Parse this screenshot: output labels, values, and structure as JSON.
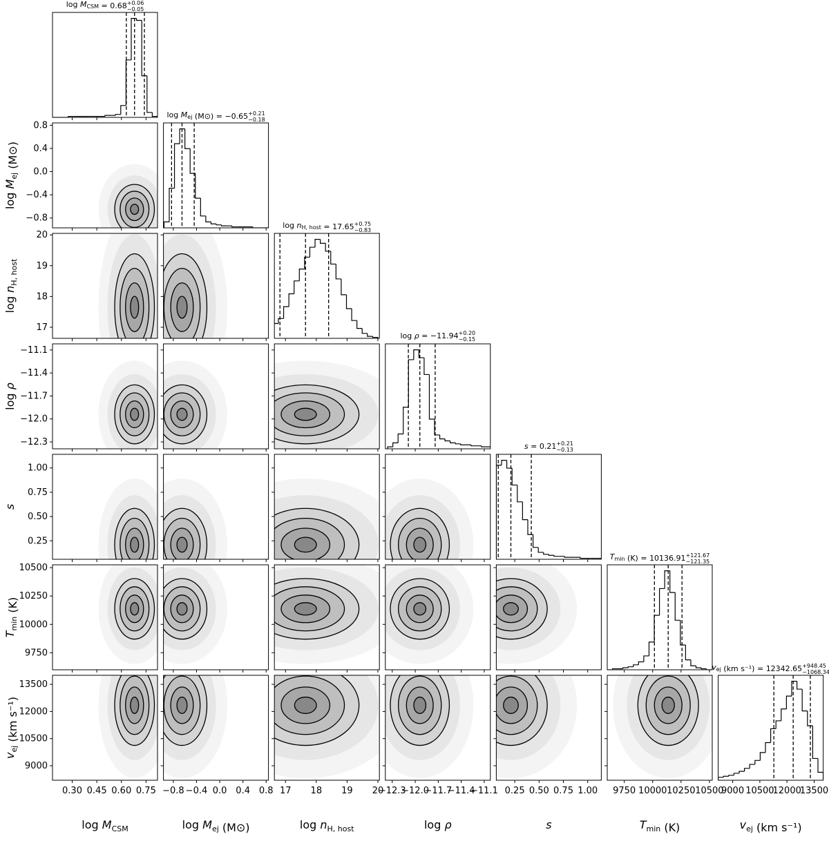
{
  "chart_data": {
    "type": "corner",
    "color": "#000000",
    "density_color": "#707070",
    "equals": " = ",
    "hist_ylim": [
      0,
      106
    ],
    "params": [
      {
        "label": {
          "pre": "log ",
          "var": "M",
          "sub": "CSM"
        },
        "median": 0.68,
        "plus": {
          "value": 0.06,
          "label": "+0.06"
        },
        "minus": {
          "value": -0.05,
          "label": "−0.05"
        },
        "lim": [
          0.18,
          0.82
        ],
        "ticks": [
          {
            "value": 0.3,
            "label": "0.30"
          },
          0.45,
          {
            "value": 0.6,
            "label": "0.60"
          },
          0.75
        ],
        "bins": [
          0.18,
          0.212,
          0.244,
          0.276,
          0.308,
          0.34,
          0.372,
          0.404,
          0.436,
          0.468,
          0.5,
          0.532,
          0.564,
          0.596,
          0.628,
          0.66,
          0.692,
          0.724,
          0.756,
          0.788,
          0.82
        ],
        "counts": [
          0,
          0,
          0,
          1,
          1,
          1,
          1,
          1,
          1,
          1,
          2,
          2,
          3,
          12,
          58,
          100,
          98,
          42,
          5,
          1
        ]
      },
      {
        "label": {
          "pre": "log ",
          "var": "M",
          "sub": "ej",
          "post": " (M⊙)"
        },
        "median": {
          "value": -0.65,
          "label": "−0.65"
        },
        "plus": {
          "value": 0.21,
          "label": "+0.21"
        },
        "minus": {
          "value": -0.18,
          "label": "−0.18"
        },
        "lim": [
          -0.97,
          0.84
        ],
        "ticks": [
          {
            "value": -0.8,
            "label": "−0.8"
          },
          {
            "value": -0.4,
            "label": "−0.4"
          },
          {
            "value": 0,
            "label": "0.0"
          },
          0.4,
          0.8
        ],
        "bins": [
          -0.96,
          -0.87,
          -0.78,
          -0.69,
          -0.6,
          -0.51,
          -0.42,
          -0.33,
          -0.24,
          -0.15,
          -0.06,
          0.03,
          0.12,
          0.21,
          0.3,
          0.39,
          0.48,
          0.57,
          0.66,
          0.75,
          0.84
        ],
        "counts": [
          6,
          40,
          85,
          100,
          80,
          55,
          30,
          12,
          6,
          4,
          3,
          2,
          2,
          1,
          1,
          1,
          1,
          0,
          0,
          0
        ]
      },
      {
        "label": {
          "pre": "log ",
          "var": "n",
          "sub": "H, host"
        },
        "median": 17.65,
        "plus": {
          "value": 0.75,
          "label": "+0.75"
        },
        "minus": {
          "value": -0.83,
          "label": "−0.83"
        },
        "lim": [
          16.64,
          20.05
        ],
        "ticks": [
          17,
          18,
          19,
          20
        ],
        "bins": [
          16.6,
          16.77,
          16.94,
          17.11,
          17.28,
          17.45,
          17.62,
          17.79,
          17.96,
          18.13,
          18.3,
          18.47,
          18.64,
          18.81,
          18.98,
          19.15,
          19.32,
          19.49,
          19.66,
          19.83,
          20.0
        ],
        "counts": [
          15,
          20,
          32,
          45,
          58,
          70,
          82,
          92,
          100,
          96,
          88,
          75,
          60,
          44,
          30,
          18,
          10,
          5,
          2,
          1
        ]
      },
      {
        "label": {
          "pre": "log ",
          "var": "ρ"
        },
        "median": {
          "value": -11.94,
          "label": "−11.94"
        },
        "plus": {
          "value": 0.2,
          "label": "+0.20"
        },
        "minus": {
          "value": -0.15,
          "label": "−0.15"
        },
        "lim": [
          -12.39,
          -11.02
        ],
        "ticks": [
          {
            "value": -12.3,
            "label": "−12.3"
          },
          {
            "value": -12.0,
            "label": "−12.0"
          },
          {
            "value": -11.7,
            "label": "−11.7"
          },
          {
            "value": -11.4,
            "label": "−11.4"
          },
          {
            "value": -11.1,
            "label": "−11.1"
          }
        ],
        "bins": [
          -12.36,
          -12.292,
          -12.224,
          -12.156,
          -12.088,
          -12.02,
          -11.952,
          -11.884,
          -11.816,
          -11.748,
          -11.68,
          -11.612,
          -11.544,
          -11.476,
          -11.408,
          -11.34,
          -11.272,
          -11.204,
          -11.136,
          -11.068,
          -11.0
        ],
        "counts": [
          2,
          6,
          15,
          42,
          90,
          100,
          92,
          75,
          30,
          14,
          10,
          8,
          6,
          5,
          4,
          4,
          3,
          3,
          2,
          2
        ]
      },
      {
        "label": {
          "var": "s"
        },
        "median": 0.21,
        "plus": {
          "value": 0.21,
          "label": "+0.21"
        },
        "minus": {
          "value": -0.13,
          "label": "−0.13"
        },
        "lim": [
          0.06,
          1.14
        ],
        "ticks": [
          0.25,
          {
            "value": 0.5,
            "label": "0.50"
          },
          0.75,
          {
            "value": 1.0,
            "label": "1.00"
          }
        ],
        "bins": [
          0.06,
          0.114,
          0.168,
          0.222,
          0.276,
          0.33,
          0.384,
          0.438,
          0.492,
          0.546,
          0.6,
          0.654,
          0.708,
          0.762,
          0.816,
          0.87,
          0.924,
          0.978,
          1.032,
          1.086,
          1.14
        ],
        "counts": [
          95,
          100,
          92,
          75,
          58,
          40,
          25,
          12,
          7,
          5,
          4,
          3,
          3,
          2,
          2,
          2,
          1,
          1,
          1,
          1
        ]
      },
      {
        "label": {
          "var": "T",
          "sub": "min",
          "post": " (K)"
        },
        "median": 10136.91,
        "plus": {
          "value": 121.67,
          "label": "+121.67"
        },
        "minus": {
          "value": -121.35,
          "label": "−121.35"
        },
        "lim": [
          9600,
          10525
        ],
        "ticks": [
          9750,
          10000,
          10250,
          10500
        ],
        "bins": [
          9600,
          9646,
          9692,
          9738,
          9784,
          9830,
          9876,
          9922,
          9968,
          10014,
          10060,
          10106,
          10152,
          10198,
          10244,
          10290,
          10336,
          10382,
          10428,
          10474,
          10520
        ],
        "counts": [
          0,
          1,
          1,
          2,
          3,
          5,
          8,
          14,
          28,
          55,
          82,
          100,
          78,
          50,
          25,
          10,
          4,
          2,
          1,
          0
        ]
      },
      {
        "label": {
          "var": "v",
          "sub": "ej",
          "post": " (km s⁻¹)"
        },
        "median": 12342.65,
        "plus": {
          "value": 948.45,
          "label": "+948.45"
        },
        "minus": {
          "value": -1068.34,
          "label": "−1068.34"
        },
        "lim": [
          8200,
          14000
        ],
        "ticks": [
          9000,
          10500,
          12000,
          13500
        ],
        "bins": [
          8200,
          8490,
          8780,
          9070,
          9360,
          9650,
          9940,
          10230,
          10520,
          10810,
          11100,
          11390,
          11680,
          11970,
          12260,
          12550,
          12840,
          13130,
          13420,
          13710,
          14000
        ],
        "counts": [
          3,
          4,
          5,
          7,
          9,
          12,
          16,
          20,
          28,
          38,
          52,
          60,
          72,
          85,
          100,
          92,
          70,
          55,
          22,
          8
        ]
      }
    ]
  }
}
